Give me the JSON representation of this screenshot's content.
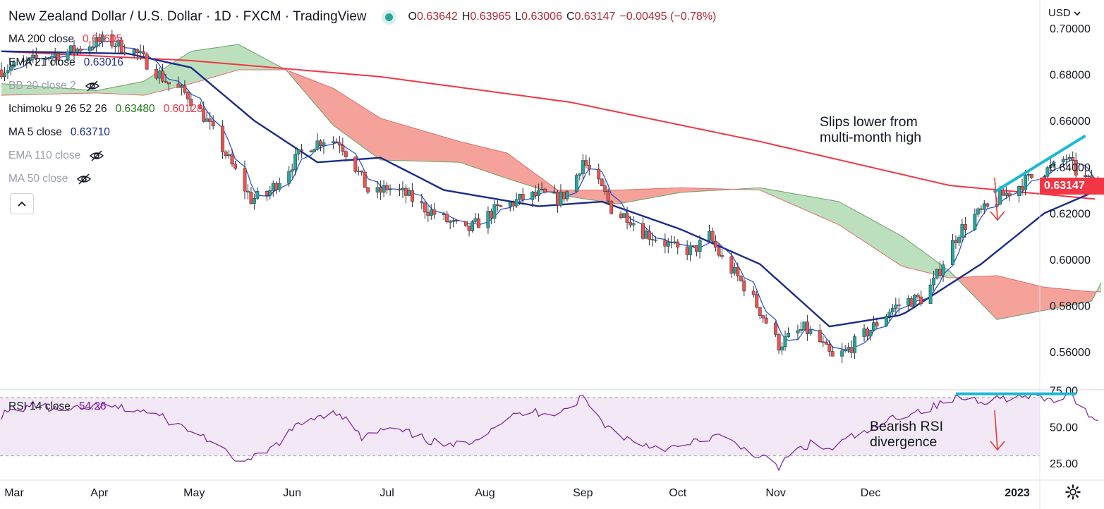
{
  "header": {
    "title": "New Zealand Dollar / U.S. Dollar · 1D · FXCM · TradingView",
    "ohlc": [
      {
        "label": "O",
        "value": "0.63642"
      },
      {
        "label": "H",
        "value": "0.63965"
      },
      {
        "label": "L",
        "value": "0.63006"
      },
      {
        "label": "C",
        "value": "0.63147"
      }
    ],
    "change": "−0.00495 (−0.78%)"
  },
  "legend": [
    {
      "name": "MA 200 close",
      "value": "0.62605",
      "color": "#f23645",
      "hidden": false
    },
    {
      "name": "EMA 21 close",
      "value": "0.63016",
      "color": "#1a2b8c",
      "hidden": false
    },
    {
      "name": "BB 20 close 2",
      "value": "",
      "color": "#9ba0ab",
      "hidden": true
    },
    {
      "name": "Ichimoku 9 26 52 26",
      "value": "0.63480",
      "value2": "0.60128",
      "color": "#1b7a12",
      "color2": "#f23645",
      "hidden": false
    },
    {
      "name": "MA 5 close",
      "value": "0.63710",
      "color": "#1a2b8c",
      "hidden": false
    },
    {
      "name": "EMA 110 close",
      "value": "",
      "color": "#9ba0ab",
      "hidden": true
    },
    {
      "name": "MA 50 close",
      "value": "",
      "color": "#9ba0ab",
      "hidden": true
    }
  ],
  "rsi_legend": {
    "name": "RSI 14 close",
    "value": "54.26",
    "color": "#7b1fa2"
  },
  "currency": "USD",
  "last_price": "0.63147",
  "annotations": {
    "top_line1": "Slips lower from",
    "top_line2": "multi-month high",
    "rsi_line1": "Bearish RSI",
    "rsi_line2": "divergence"
  },
  "colors": {
    "up": "#26a69a",
    "down": "#ef5350",
    "ma200": "#f23645",
    "ema21": "#1a2b8c",
    "ma5": "#1e4bd8",
    "cloud_bull": "#a5d6a7",
    "cloud_bear": "#f28b82",
    "rsi": "#7b1fa2",
    "annotation_line": "#1ab8d6"
  },
  "chart_data": [
    {
      "type": "candlestick",
      "title": "New Zealand Dollar / U.S. Dollar · 1D · FXCM",
      "x_ticks": [
        "Mar",
        "Apr",
        "May",
        "Jun",
        "Jul",
        "Aug",
        "Sep",
        "Oct",
        "Nov",
        "Dec",
        "2023"
      ],
      "y_ticks": [
        "0.70000",
        "0.68000",
        "0.66000",
        "0.64000",
        "0.62000",
        "0.60000",
        "0.58000",
        "0.56000"
      ],
      "ylim": [
        0.548,
        0.7
      ],
      "x_range_days": [
        0,
        330
      ],
      "close_anchors": [
        [
          0,
          0.682
        ],
        [
          8,
          0.685
        ],
        [
          15,
          0.688
        ],
        [
          22,
          0.69
        ],
        [
          28,
          0.693
        ],
        [
          33,
          0.695
        ],
        [
          38,
          0.692
        ],
        [
          42,
          0.69
        ],
        [
          47,
          0.684
        ],
        [
          53,
          0.676
        ],
        [
          59,
          0.671
        ],
        [
          64,
          0.662
        ],
        [
          70,
          0.648
        ],
        [
          76,
          0.633
        ],
        [
          79,
          0.626
        ],
        [
          84,
          0.628
        ],
        [
          90,
          0.638
        ],
        [
          96,
          0.648
        ],
        [
          102,
          0.652
        ],
        [
          107,
          0.651
        ],
        [
          112,
          0.64
        ],
        [
          117,
          0.627
        ],
        [
          122,
          0.631
        ],
        [
          128,
          0.628
        ],
        [
          133,
          0.623
        ],
        [
          138,
          0.619
        ],
        [
          143,
          0.615
        ],
        [
          147,
          0.612
        ],
        [
          151,
          0.616
        ],
        [
          156,
          0.621
        ],
        [
          161,
          0.624
        ],
        [
          166,
          0.627
        ],
        [
          171,
          0.628
        ],
        [
          176,
          0.626
        ],
        [
          180,
          0.63
        ],
        [
          184,
          0.643
        ],
        [
          187,
          0.636
        ],
        [
          191,
          0.628
        ],
        [
          194,
          0.619
        ],
        [
          198,
          0.619
        ],
        [
          203,
          0.612
        ],
        [
          209,
          0.608
        ],
        [
          214,
          0.604
        ],
        [
          219,
          0.604
        ],
        [
          224,
          0.61
        ],
        [
          228,
          0.6
        ],
        [
          232,
          0.594
        ],
        [
          237,
          0.585
        ],
        [
          242,
          0.573
        ],
        [
          246,
          0.563
        ],
        [
          250,
          0.567
        ],
        [
          254,
          0.57
        ],
        [
          258,
          0.566
        ],
        [
          263,
          0.557
        ],
        [
          267,
          0.56
        ],
        [
          271,
          0.565
        ],
        [
          276,
          0.571
        ],
        [
          281,
          0.578
        ],
        [
          286,
          0.582
        ],
        [
          291,
          0.583
        ],
        [
          295,
          0.59
        ],
        [
          299,
          0.602
        ],
        [
          303,
          0.612
        ],
        [
          307,
          0.618
        ],
        [
          312,
          0.622
        ],
        [
          316,
          0.627
        ],
        [
          320,
          0.63
        ],
        [
          324,
          0.634
        ],
        [
          328,
          0.637
        ],
        [
          333,
          0.64
        ],
        [
          337,
          0.644
        ],
        [
          341,
          0.636
        ],
        [
          345,
          0.633
        ],
        [
          347,
          0.63147
        ]
      ],
      "indicators": {
        "ma200": [
          [
            0,
            0.69
          ],
          [
            60,
            0.686
          ],
          [
            120,
            0.679
          ],
          [
            180,
            0.668
          ],
          [
            240,
            0.651
          ],
          [
            300,
            0.632
          ],
          [
            347,
            0.626
          ]
        ],
        "ema21": [
          [
            0,
            0.69
          ],
          [
            40,
            0.689
          ],
          [
            60,
            0.683
          ],
          [
            80,
            0.66
          ],
          [
            100,
            0.642
          ],
          [
            120,
            0.644
          ],
          [
            140,
            0.63
          ],
          [
            170,
            0.623
          ],
          [
            190,
            0.625
          ],
          [
            215,
            0.613
          ],
          [
            240,
            0.598
          ],
          [
            262,
            0.571
          ],
          [
            285,
            0.576
          ],
          [
            310,
            0.598
          ],
          [
            330,
            0.62
          ],
          [
            347,
            0.63
          ]
        ],
        "ichimoku_cloud": [
          [
            0,
            0.676,
            0.671
          ],
          [
            30,
            0.673,
            0.672
          ],
          [
            45,
            0.677,
            0.671
          ],
          [
            60,
            0.69,
            0.676
          ],
          [
            75,
            0.693,
            0.682
          ],
          [
            90,
            0.682,
            0.682
          ],
          [
            105,
            0.658,
            0.674
          ],
          [
            120,
            0.643,
            0.661
          ],
          [
            145,
            0.642,
            0.651
          ],
          [
            160,
            0.635,
            0.646
          ],
          [
            176,
            0.628,
            0.63
          ],
          [
            195,
            0.624,
            0.63
          ],
          [
            215,
            0.629,
            0.631
          ],
          [
            240,
            0.631,
            0.63
          ],
          [
            265,
            0.625,
            0.615
          ],
          [
            285,
            0.61,
            0.597
          ],
          [
            300,
            0.595,
            0.592
          ],
          [
            315,
            0.574,
            0.593
          ],
          [
            330,
            0.578,
            0.588
          ],
          [
            345,
            0.582,
            0.586
          ],
          [
            348,
            0.59,
            0.586
          ]
        ]
      }
    },
    {
      "type": "line",
      "title": "RSI 14 close",
      "y_ticks": [
        "75.00",
        "50.00",
        "25.00"
      ],
      "ylim": [
        19,
        80
      ],
      "bands": [
        30,
        70
      ],
      "values_anchors": [
        [
          0,
          58
        ],
        [
          10,
          65
        ],
        [
          20,
          60
        ],
        [
          30,
          64
        ],
        [
          40,
          62
        ],
        [
          47,
          60
        ],
        [
          55,
          52
        ],
        [
          65,
          42
        ],
        [
          72,
          30
        ],
        [
          78,
          26
        ],
        [
          85,
          34
        ],
        [
          92,
          48
        ],
        [
          100,
          58
        ],
        [
          107,
          60
        ],
        [
          114,
          42
        ],
        [
          121,
          48
        ],
        [
          128,
          46
        ],
        [
          136,
          40
        ],
        [
          142,
          36
        ],
        [
          150,
          42
        ],
        [
          157,
          52
        ],
        [
          163,
          58
        ],
        [
          168,
          60
        ],
        [
          175,
          60
        ],
        [
          180,
          63
        ],
        [
          184,
          71
        ],
        [
          188,
          58
        ],
        [
          193,
          48
        ],
        [
          198,
          42
        ],
        [
          203,
          38
        ],
        [
          209,
          36
        ],
        [
          215,
          35
        ],
        [
          220,
          40
        ],
        [
          226,
          44
        ],
        [
          232,
          38
        ],
        [
          238,
          32
        ],
        [
          243,
          26
        ],
        [
          246,
          22
        ],
        [
          250,
          32
        ],
        [
          256,
          38
        ],
        [
          262,
          34
        ],
        [
          268,
          42
        ],
        [
          276,
          48
        ],
        [
          282,
          56
        ],
        [
          288,
          60
        ],
        [
          293,
          62
        ],
        [
          298,
          66
        ],
        [
          303,
          70
        ],
        [
          310,
          68
        ],
        [
          318,
          70
        ],
        [
          325,
          70
        ],
        [
          332,
          68
        ],
        [
          338,
          71
        ],
        [
          342,
          63
        ],
        [
          346,
          56
        ],
        [
          347,
          54.26
        ]
      ]
    }
  ]
}
